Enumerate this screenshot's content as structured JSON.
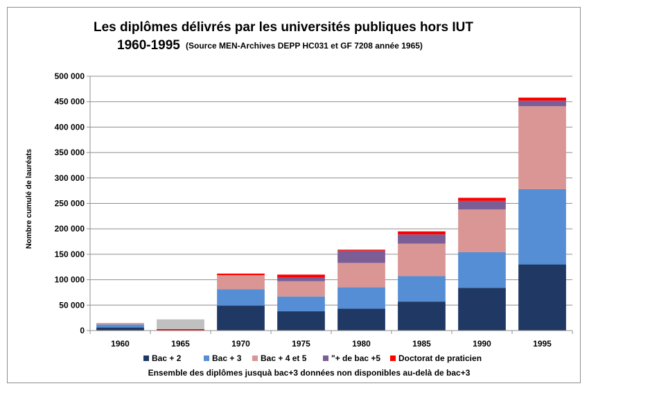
{
  "chart_data": {
    "type": "bar",
    "stacked": true,
    "title_line1": "Les diplômes délivrés par les universités publiques hors IUT",
    "title_line2": "1960-1995",
    "subtitle": "(Source MEN-Archives DEPP HC031 et GF 7208 année 1965)",
    "ylabel": "Nombre cumulé de lauréats",
    "xlabel": "",
    "note": "Ensemble des diplômes jusquà bac+3  données non disponibles au-delà de bac+3",
    "ylim": [
      0,
      500000
    ],
    "yticks": [
      0,
      50000,
      100000,
      150000,
      200000,
      250000,
      300000,
      350000,
      400000,
      450000,
      500000
    ],
    "ytick_labels": [
      "0",
      "50 000",
      "100 000",
      "150 000",
      "200 000",
      "250 000",
      "300 000",
      "350 000",
      "400 000",
      "450 000",
      "500 000"
    ],
    "grid": true,
    "legend_position": "bottom",
    "categories": [
      "1960",
      "1965",
      "1970",
      "1975",
      "1980",
      "1985",
      "1990",
      "1995"
    ],
    "series": [
      {
        "name": "Bac + 2",
        "color": "#1f3864",
        "values": [
          6000,
          0,
          49000,
          38000,
          43000,
          57000,
          84000,
          130000
        ]
      },
      {
        "name": "Bac + 3",
        "color": "#558ed5",
        "values": [
          6000,
          0,
          32000,
          29000,
          42000,
          50000,
          70000,
          148000
        ]
      },
      {
        "name": "Bac + 4 et 5",
        "color": "#d99694",
        "values": [
          2000,
          0,
          28000,
          30000,
          48000,
          64000,
          84000,
          163000
        ]
      },
      {
        "name": "\"+ de bac +5",
        "color": "#7b5e96",
        "values": [
          0,
          0,
          0,
          7000,
          24000,
          18000,
          17000,
          11000
        ]
      },
      {
        "name": "Doctorat de praticien",
        "color": "#ff0000",
        "values": [
          500,
          3000,
          3000,
          6000,
          2000,
          6000,
          6000,
          6000
        ]
      },
      {
        "name": "Ensemble jusqu'à bac+3",
        "color": "#c0c0c0",
        "in_legend": false,
        "values": [
          0,
          19000,
          0,
          0,
          0,
          0,
          0,
          0
        ]
      }
    ]
  }
}
